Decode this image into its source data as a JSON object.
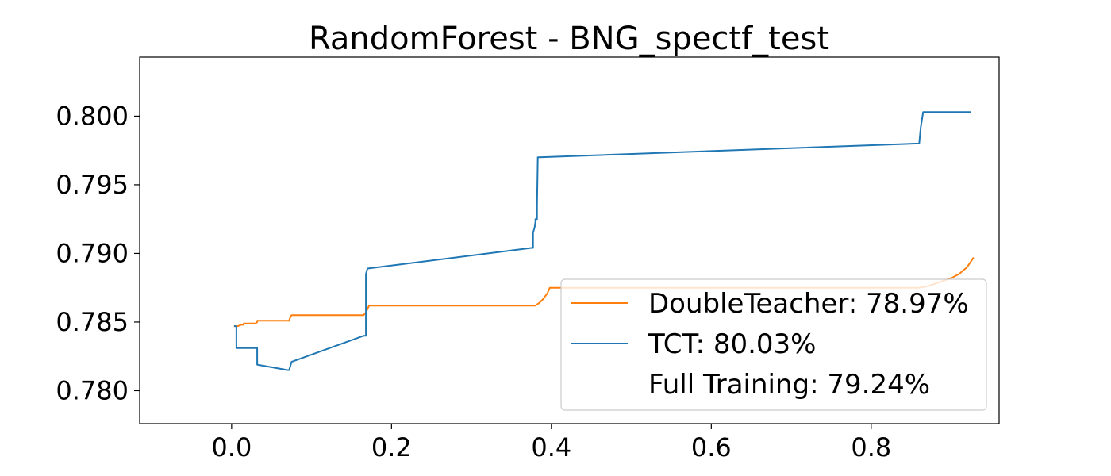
{
  "chart_data": {
    "type": "line",
    "title": "RandomForest - BNG_spectf_test",
    "xlabel": "",
    "ylabel": "",
    "xlim": [
      -0.115,
      0.96
    ],
    "ylim": [
      0.7776,
      0.8043
    ],
    "x_ticks": [
      0.0,
      0.2,
      0.4,
      0.6,
      0.8
    ],
    "x_tick_labels": [
      "0.0",
      "0.2",
      "0.4",
      "0.6",
      "0.8"
    ],
    "y_ticks": [
      0.78,
      0.785,
      0.79,
      0.795,
      0.8
    ],
    "y_tick_labels": [
      "0.780",
      "0.785",
      "0.790",
      "0.795",
      "0.800"
    ],
    "grid": false,
    "legend_position": "lower-right",
    "series": [
      {
        "name": "DoubleTeacher: 78.97%",
        "color": "#ff7f0e",
        "x": [
          0.003,
          0.008,
          0.012,
          0.015,
          0.015,
          0.03,
          0.032,
          0.032,
          0.072,
          0.073,
          0.075,
          0.165,
          0.168,
          0.172,
          0.38,
          0.385,
          0.39,
          0.395,
          0.398,
          0.4,
          0.86,
          0.87,
          0.88,
          0.89,
          0.9,
          0.91,
          0.92,
          0.928
        ],
        "y": [
          0.7847,
          0.7847,
          0.7848,
          0.7848,
          0.7849,
          0.7849,
          0.785,
          0.7851,
          0.7851,
          0.7853,
          0.7855,
          0.7855,
          0.7857,
          0.7862,
          0.7862,
          0.7864,
          0.7867,
          0.7871,
          0.7875,
          0.7875,
          0.7875,
          0.7876,
          0.7878,
          0.788,
          0.7882,
          0.7885,
          0.789,
          0.7897
        ]
      },
      {
        "name": "TCT: 80.03%",
        "color": "#1f77b4",
        "x": [
          0.003,
          0.006,
          0.006,
          0.03,
          0.032,
          0.032,
          0.07,
          0.072,
          0.075,
          0.165,
          0.168,
          0.168,
          0.17,
          0.375,
          0.377,
          0.377,
          0.377,
          0.379,
          0.38,
          0.38,
          0.382,
          0.382,
          0.383,
          0.385,
          0.855,
          0.86,
          0.862,
          0.865,
          0.925
        ],
        "y": [
          0.7847,
          0.7847,
          0.7831,
          0.7831,
          0.7831,
          0.7819,
          0.7815,
          0.7815,
          0.7821,
          0.784,
          0.784,
          0.7885,
          0.7889,
          0.7904,
          0.7904,
          0.791,
          0.7915,
          0.7919,
          0.7923,
          0.7925,
          0.7925,
          0.7935,
          0.797,
          0.797,
          0.798,
          0.798,
          0.7992,
          0.8003,
          0.8003
        ]
      }
    ],
    "legend_entries": [
      {
        "label": "DoubleTeacher: 78.97%",
        "color": "#ff7f0e"
      },
      {
        "label": "TCT: 80.03%",
        "color": "#1f77b4"
      },
      {
        "label": "Full Training: 79.24%",
        "color": "#ffffff"
      }
    ]
  }
}
